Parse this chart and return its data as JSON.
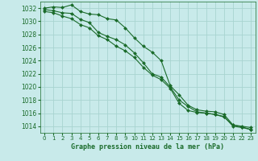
{
  "title": "Graphe pression niveau de la mer (hPa)",
  "background_color": "#c8eaea",
  "grid_color": "#a8d4d0",
  "line_color": "#1a6b2a",
  "marker_color": "#1a6b2a",
  "xlim": [
    -0.5,
    23.5
  ],
  "ylim": [
    1013.0,
    1033.0
  ],
  "yticks": [
    1014,
    1016,
    1018,
    1020,
    1022,
    1024,
    1026,
    1028,
    1030,
    1032
  ],
  "xticks": [
    0,
    1,
    2,
    3,
    4,
    5,
    6,
    7,
    8,
    9,
    10,
    11,
    12,
    13,
    14,
    15,
    16,
    17,
    18,
    19,
    20,
    21,
    22,
    23
  ],
  "series1": [
    1032.0,
    1032.2,
    1032.1,
    1032.5,
    1031.5,
    1031.1,
    1031.0,
    1030.4,
    1030.2,
    1029.0,
    1027.5,
    1026.2,
    1025.3,
    1024.0,
    1020.2,
    1018.8,
    1017.2,
    1016.5,
    1016.3,
    1016.2,
    1015.8,
    1014.2,
    1014.0,
    1013.8
  ],
  "series2": [
    1031.8,
    1031.6,
    1031.3,
    1031.2,
    1030.3,
    1029.8,
    1028.3,
    1027.7,
    1027.2,
    1026.4,
    1025.2,
    1023.7,
    1022.0,
    1021.5,
    1020.0,
    1018.0,
    1017.0,
    1016.2,
    1016.0,
    1015.8,
    1015.5,
    1014.0,
    1013.8,
    1013.5
  ],
  "series3": [
    1031.5,
    1031.3,
    1030.8,
    1030.4,
    1029.5,
    1029.0,
    1027.8,
    1027.2,
    1026.2,
    1025.5,
    1024.5,
    1023.0,
    1021.8,
    1021.1,
    1019.8,
    1017.5,
    1016.4,
    1016.1,
    1016.0,
    1015.8,
    1015.4,
    1014.2,
    1013.9,
    1013.5
  ]
}
